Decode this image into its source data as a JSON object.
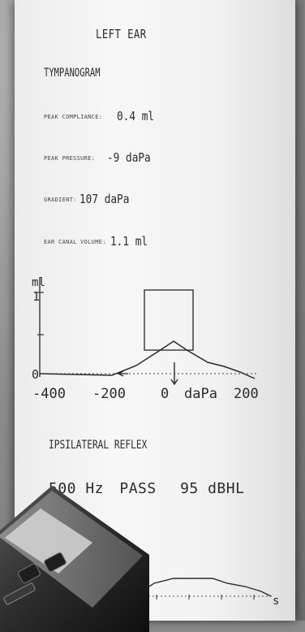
{
  "header": {
    "ear": "LEFT EAR",
    "section": "TYMPANOGRAM"
  },
  "measurements": [
    {
      "label": "PEAK COMPLIANCE:",
      "value": "0.4 ml"
    },
    {
      "label": "PEAK PRESSURE:",
      "value": "-9 daPa"
    },
    {
      "label": "GRADIENT:",
      "value": "107 daPa"
    },
    {
      "label": "EAR CANAL VOLUME:",
      "value": "1.1 ml"
    }
  ],
  "tympanogram": {
    "y_unit": "ml",
    "y_tick_top": "1",
    "y_tick_zero": "0",
    "x_ticks": [
      "-400",
      "-200",
      "0",
      "daPa",
      "200"
    ]
  },
  "reflex": {
    "title": "IPSILATERAL REFLEX",
    "frequency": "500 Hz",
    "result": "PASS",
    "level": "95 dBHL",
    "x_unit": "s"
  }
}
